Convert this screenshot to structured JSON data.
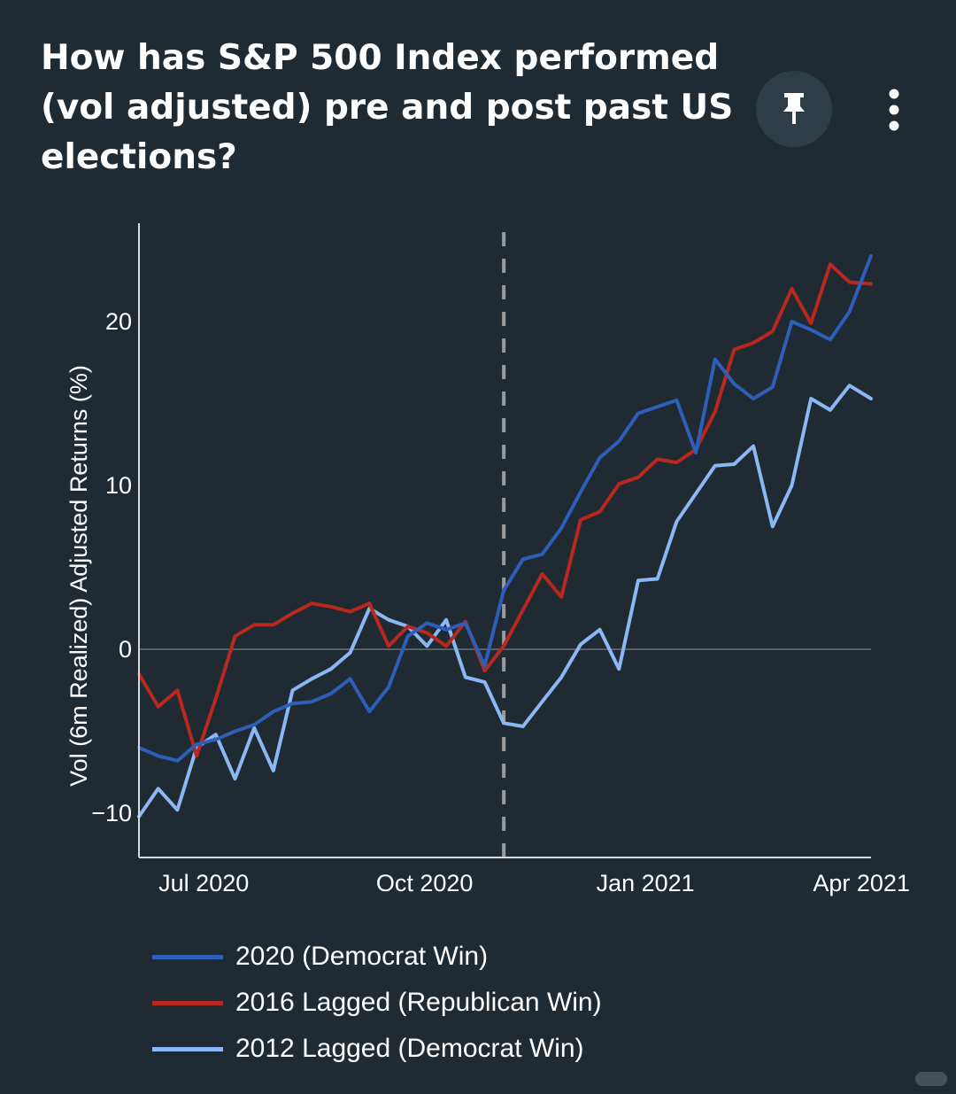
{
  "header": {
    "title": "How has S&P 500 Index performed (vol adjusted) pre and post past US elections?",
    "pin_icon": "pin-icon",
    "more_icon": "more-vertical-icon"
  },
  "colors": {
    "background": "#1f2a33",
    "series_2020": "#2d5fb8",
    "series_2016": "#b8281f",
    "series_2012": "#8ab8f5",
    "election_line": "#9a9a9a"
  },
  "chart_data": {
    "type": "line",
    "title": "",
    "xlabel": "",
    "ylabel": "Vol (6m Realized) Adjusted Returns (%)",
    "x_tick_labels": [
      "Jul 2020",
      "Oct 2020",
      "Jan 2021",
      "Apr 2021"
    ],
    "x_tick_dates": [
      "2020-07-01",
      "2020-10-01",
      "2021-01-01",
      "2021-04-01"
    ],
    "xlim": [
      "2020-06-04",
      "2021-04-05"
    ],
    "y_tick_labels": [
      "−10",
      "0",
      "10",
      "20"
    ],
    "y_ticks": [
      -10,
      0,
      10,
      20
    ],
    "ylim": [
      -12.7,
      26
    ],
    "reference_line": {
      "date": "2020-11-03"
    },
    "grid": "horizontal line at 0",
    "legend_position": "bottom",
    "series": [
      {
        "name": "2020 (Democrat Win)",
        "x": [
          "2020-06-04",
          "2020-06-12",
          "2020-06-20",
          "2020-06-28",
          "2020-07-06",
          "2020-07-14",
          "2020-07-22",
          "2020-07-30",
          "2020-08-07",
          "2020-08-15",
          "2020-08-23",
          "2020-08-31",
          "2020-09-08",
          "2020-09-16",
          "2020-09-24",
          "2020-10-02",
          "2020-10-10",
          "2020-10-18",
          "2020-10-26",
          "2020-11-03",
          "2020-11-11",
          "2020-11-19",
          "2020-11-27",
          "2020-12-05",
          "2020-12-13",
          "2020-12-21",
          "2020-12-29",
          "2021-01-06",
          "2021-01-14",
          "2021-01-22",
          "2021-01-30",
          "2021-02-07",
          "2021-02-15",
          "2021-02-23",
          "2021-03-03",
          "2021-03-11",
          "2021-03-19",
          "2021-03-27",
          "2021-04-05"
        ],
        "y": [
          -6.0,
          -6.5,
          -6.8,
          -5.8,
          -5.5,
          -5.0,
          -4.6,
          -3.8,
          -3.3,
          -3.2,
          -2.7,
          -1.8,
          -3.8,
          -2.3,
          0.8,
          1.6,
          1.2,
          1.6,
          -1.0,
          3.6,
          5.5,
          5.8,
          7.4,
          9.6,
          11.7,
          12.7,
          14.4,
          14.8,
          15.2,
          12.0,
          17.7,
          16.2,
          15.3,
          16.0,
          20.0,
          19.5,
          18.9,
          20.6,
          24.0
        ]
      },
      {
        "name": "2016 Lagged (Republican Win)",
        "x": [
          "2020-06-04",
          "2020-06-12",
          "2020-06-20",
          "2020-06-28",
          "2020-07-06",
          "2020-07-14",
          "2020-07-22",
          "2020-07-30",
          "2020-08-07",
          "2020-08-15",
          "2020-08-23",
          "2020-08-31",
          "2020-09-08",
          "2020-09-16",
          "2020-09-24",
          "2020-10-02",
          "2020-10-10",
          "2020-10-18",
          "2020-10-26",
          "2020-11-03",
          "2020-11-11",
          "2020-11-19",
          "2020-11-27",
          "2020-12-05",
          "2020-12-13",
          "2020-12-21",
          "2020-12-29",
          "2021-01-06",
          "2021-01-14",
          "2021-01-22",
          "2021-01-30",
          "2021-02-07",
          "2021-02-15",
          "2021-02-23",
          "2021-03-03",
          "2021-03-11",
          "2021-03-19",
          "2021-03-27",
          "2021-04-05"
        ],
        "y": [
          -1.5,
          -3.5,
          -2.5,
          -6.5,
          -3.0,
          0.8,
          1.5,
          1.5,
          2.2,
          2.8,
          2.6,
          2.3,
          2.8,
          0.2,
          1.4,
          1.0,
          0.2,
          1.7,
          -1.3,
          0.2,
          2.4,
          4.6,
          3.2,
          7.9,
          8.4,
          10.1,
          10.5,
          11.6,
          11.4,
          12.2,
          14.5,
          18.3,
          18.7,
          19.4,
          22.0,
          19.9,
          23.5,
          22.4,
          22.3
        ]
      },
      {
        "name": "2012 Lagged (Democrat Win)",
        "x": [
          "2020-06-04",
          "2020-06-12",
          "2020-06-20",
          "2020-06-28",
          "2020-07-06",
          "2020-07-14",
          "2020-07-22",
          "2020-07-30",
          "2020-08-07",
          "2020-08-15",
          "2020-08-23",
          "2020-08-31",
          "2020-09-08",
          "2020-09-16",
          "2020-09-24",
          "2020-10-02",
          "2020-10-10",
          "2020-10-18",
          "2020-10-26",
          "2020-11-03",
          "2020-11-11",
          "2020-11-19",
          "2020-11-27",
          "2020-12-05",
          "2020-12-13",
          "2020-12-21",
          "2020-12-29",
          "2021-01-06",
          "2021-01-14",
          "2021-01-22",
          "2021-01-30",
          "2021-02-07",
          "2021-02-15",
          "2021-02-23",
          "2021-03-03",
          "2021-03-11",
          "2021-03-19",
          "2021-03-27",
          "2021-04-05"
        ],
        "y": [
          -10.2,
          -8.5,
          -9.8,
          -6.0,
          -5.2,
          -7.9,
          -4.8,
          -7.4,
          -2.5,
          -1.8,
          -1.2,
          -0.2,
          2.5,
          1.8,
          1.4,
          0.2,
          1.8,
          -1.7,
          -2.0,
          -4.5,
          -4.7,
          -3.2,
          -1.7,
          0.3,
          1.2,
          -1.2,
          4.2,
          4.3,
          7.8,
          9.5,
          11.2,
          11.3,
          12.4,
          7.5,
          10.0,
          15.3,
          14.6,
          16.1,
          15.3
        ]
      }
    ]
  }
}
